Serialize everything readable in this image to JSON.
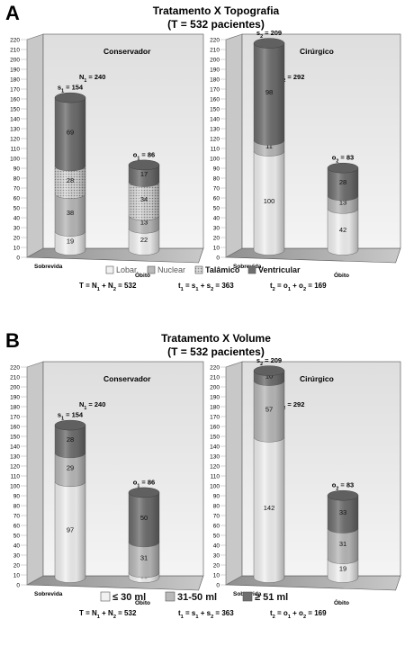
{
  "chart_data": [
    {
      "type": "bar",
      "panel_letter": "A",
      "title": "Tratamento X Topografia",
      "subtitle": "(T = 532 pacientes)",
      "ylim": [
        0,
        220
      ],
      "yticks": [
        0,
        10,
        20,
        30,
        40,
        50,
        60,
        70,
        80,
        90,
        100,
        110,
        120,
        130,
        140,
        150,
        160,
        170,
        180,
        190,
        200,
        210,
        220
      ],
      "categories": [
        "Sobrevida",
        "Óbito"
      ],
      "legend": [
        "Lobar",
        "Nuclear",
        "Talâmico",
        "Ventricular"
      ],
      "colors": [
        "#f1f1f1",
        "#b9b9b9",
        "#d6d6d6",
        "#6e6e6e"
      ],
      "subpanels": [
        {
          "name": "Conservador",
          "n_label": "N1 = 240",
          "totals": [
            154,
            86
          ],
          "total_labels": [
            "s1 = 154",
            "o1 = 86"
          ],
          "series": [
            {
              "name": "Lobar",
              "values": [
                19,
                22
              ]
            },
            {
              "name": "Nuclear",
              "values": [
                38,
                13
              ]
            },
            {
              "name": "Talâmico",
              "values": [
                28,
                34
              ]
            },
            {
              "name": "Ventricular",
              "values": [
                69,
                17
              ]
            }
          ]
        },
        {
          "name": "Cirúrgico",
          "n_label": "N2 = 292",
          "totals": [
            209,
            83
          ],
          "total_labels": [
            "s2 = 209",
            "o2 = 83"
          ],
          "series": [
            {
              "name": "Lobar",
              "values": [
                100,
                42
              ]
            },
            {
              "name": "Nuclear",
              "values": [
                11,
                13
              ]
            },
            {
              "name": "Talâmico",
              "values": [
                0,
                0
              ]
            },
            {
              "name": "Ventricular",
              "values": [
                98,
                28
              ]
            }
          ]
        }
      ],
      "formulas": [
        "T = N1 + N2 = 532",
        "t1 = s1 + s2 = 363",
        "t2 = o1 + o2 = 169"
      ]
    },
    {
      "type": "bar",
      "panel_letter": "B",
      "title": "Tratamento X Volume",
      "subtitle": "(T = 532 pacientes)",
      "ylim": [
        0,
        220
      ],
      "yticks": [
        0,
        10,
        20,
        30,
        40,
        50,
        60,
        70,
        80,
        90,
        100,
        110,
        120,
        130,
        140,
        150,
        160,
        170,
        180,
        190,
        200,
        210,
        220
      ],
      "categories": [
        "Sobrevida",
        "Óbito"
      ],
      "legend": [
        "≤ 30 ml",
        "31-50 ml",
        "≥ 51 ml"
      ],
      "colors": [
        "#f1f1f1",
        "#b9b9b9",
        "#6e6e6e"
      ],
      "subpanels": [
        {
          "name": "Conservador",
          "n_label": "N1 = 240",
          "totals": [
            154,
            86
          ],
          "total_labels": [
            "s1 = 154",
            "o1 = 86"
          ],
          "series": [
            {
              "name": "≤ 30 ml",
              "values": [
                97,
                5
              ],
              "labels": [
                "97",
                "05"
              ]
            },
            {
              "name": "31-50 ml",
              "values": [
                29,
                31
              ],
              "labels": [
                "29",
                "31"
              ]
            },
            {
              "name": "≥ 51 ml",
              "values": [
                28,
                50
              ],
              "labels": [
                "28",
                "50"
              ]
            }
          ]
        },
        {
          "name": "Cirúrgico",
          "n_label": "N2 = 292",
          "totals": [
            209,
            83
          ],
          "total_labels": [
            "s2 = 209",
            "o2 = 83"
          ],
          "series": [
            {
              "name": "≤ 30 ml",
              "values": [
                142,
                19
              ],
              "labels": [
                "142",
                "19"
              ]
            },
            {
              "name": "31-50 ml",
              "values": [
                57,
                31
              ],
              "labels": [
                "57",
                "31"
              ]
            },
            {
              "name": "≥ 51 ml",
              "values": [
                10,
                33
              ],
              "labels": [
                "10",
                "33"
              ]
            }
          ]
        }
      ],
      "formulas": [
        "T = N1 + N2 = 532",
        "t1 = s1 + s2 = 363",
        "t2 = o1 + o2 = 169"
      ]
    }
  ]
}
